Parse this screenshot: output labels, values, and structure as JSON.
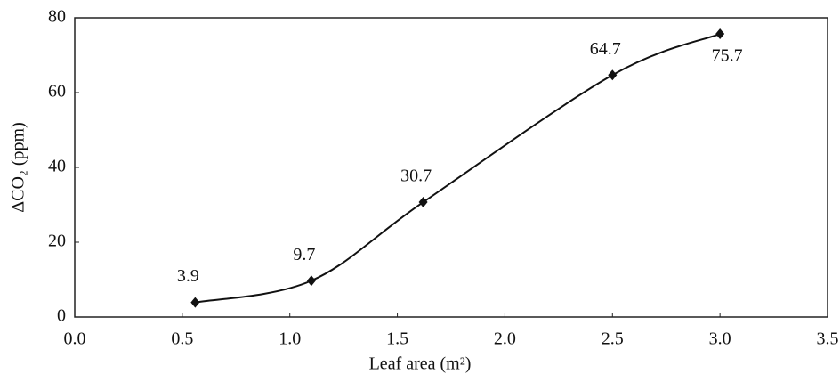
{
  "chart_data": {
    "type": "line",
    "x_label": "Leaf area (m²)",
    "y_label": "ΔCO₂ (ppm)",
    "x": [
      0.56,
      1.1,
      1.62,
      2.5,
      3.0
    ],
    "values": [
      3.9,
      9.7,
      30.7,
      64.7,
      75.7
    ],
    "color": "#111111",
    "xlim": [
      0,
      3.5
    ],
    "xticks": [
      {
        "value": 0,
        "label": "0.0"
      },
      0.5,
      {
        "value": 1,
        "label": "1.0"
      },
      1.5,
      {
        "value": 2,
        "label": "2.0"
      },
      2.5,
      {
        "value": 3,
        "label": "3.0"
      },
      3.5
    ],
    "ylim": [
      0,
      80
    ],
    "yticks": [
      0,
      20,
      40,
      60,
      80
    ],
    "smooth": true
  }
}
